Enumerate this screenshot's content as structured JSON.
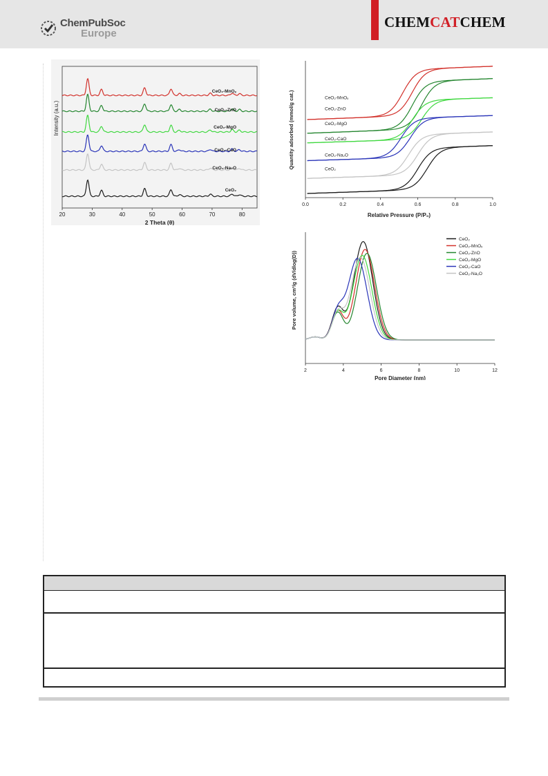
{
  "header": {
    "publisher_line1": "ChemPubSoc",
    "publisher_line2": "Europe",
    "journal_part1": "CHEM",
    "journal_part2": "CAT",
    "journal_part3": "CHEM"
  },
  "colors": {
    "red": "#d2302a",
    "darkgreen": "#23852e",
    "lightgreen": "#3fd83f",
    "blue": "#2833b8",
    "gray": "#c4c4c4",
    "black": "#1a1a1a"
  },
  "chart_data": [
    {
      "type": "line",
      "xlabel": "2 Theta (θ)",
      "ylabel": "Intensity (a.u.)",
      "xlim": [
        20,
        85
      ],
      "xticks": [
        "20",
        "30",
        "40",
        "50",
        "60",
        "70",
        "80"
      ],
      "peaks_2theta": [
        28.5,
        33.1,
        47.5,
        56.3,
        59.1,
        69.4,
        76.7,
        79.1
      ],
      "series": [
        {
          "name": "CeO₂-MnOₓ",
          "color": "#d2302a"
        },
        {
          "name": "CeO₂-ZnO",
          "color": "#23852e"
        },
        {
          "name": "CeO₂-MgO",
          "color": "#3fd83f"
        },
        {
          "name": "CeO₂-CaO",
          "color": "#2833b8"
        },
        {
          "name": "CeO₂-Na₂O",
          "color": "#c4c4c4"
        },
        {
          "name": "CeO₂",
          "color": "#1a1a1a"
        }
      ]
    },
    {
      "type": "line",
      "xlabel": "Relative Pressure (P/P₀)",
      "ylabel": "Quantity adsorbed (mmol/g cat.)",
      "xlim": [
        0.0,
        1.0
      ],
      "xticks": [
        "0.0",
        "0.2",
        "0.4",
        "0.6",
        "0.8",
        "1.0"
      ],
      "series": [
        {
          "name": "CeO₂-MnOₓ",
          "color": "#d2302a",
          "start": 0.57,
          "end": 0.96,
          "step_center": 0.57
        },
        {
          "name": "CeO₂-ZnO",
          "color": "#23852e",
          "start": 0.47,
          "end": 0.87,
          "step_center": 0.62
        },
        {
          "name": "CeO₂-MgO",
          "color": "#3fd83f",
          "start": 0.4,
          "end": 0.73,
          "step_center": 0.62
        },
        {
          "name": "CeO₂-CaO",
          "color": "#2833b8",
          "start": 0.27,
          "end": 0.6,
          "step_center": 0.56
        },
        {
          "name": "CeO₂-Na₂O",
          "color": "#c4c4c4",
          "start": 0.14,
          "end": 0.48,
          "step_center": 0.6
        },
        {
          "name": "CeO₂",
          "color": "#1a1a1a",
          "start": 0.03,
          "end": 0.38,
          "step_center": 0.65
        }
      ]
    },
    {
      "type": "line",
      "xlabel": "Pore Diameter (nm)",
      "ylabel": "Pore volume, cm³/g (dV/dlog(D))",
      "xlim": [
        2,
        12
      ],
      "xticks": [
        "2",
        "4",
        "6",
        "8",
        "10",
        "12"
      ],
      "series": [
        {
          "name": "CeO₂",
          "color": "#1a1a1a",
          "peak_x": 5.05,
          "peak_rel": 1.0
        },
        {
          "name": "CeO₂-MnOₓ",
          "color": "#d2302a",
          "peak_x": 5.15,
          "peak_rel": 0.92
        },
        {
          "name": "CeO₂-ZnO",
          "color": "#23852e",
          "peak_x": 5.25,
          "peak_rel": 0.88
        },
        {
          "name": "CeO₂-MgO",
          "color": "#3fd83f",
          "peak_x": 5.0,
          "peak_rel": 0.86
        },
        {
          "name": "CeO₂-CaO",
          "color": "#2833b8",
          "peak_x": 4.75,
          "peak_rel": 0.83
        },
        {
          "name": "CeO₂-Na₂O",
          "color": "#c4c4c4",
          "peak_x": 4.9,
          "peak_rel": 0.84
        }
      ]
    }
  ]
}
